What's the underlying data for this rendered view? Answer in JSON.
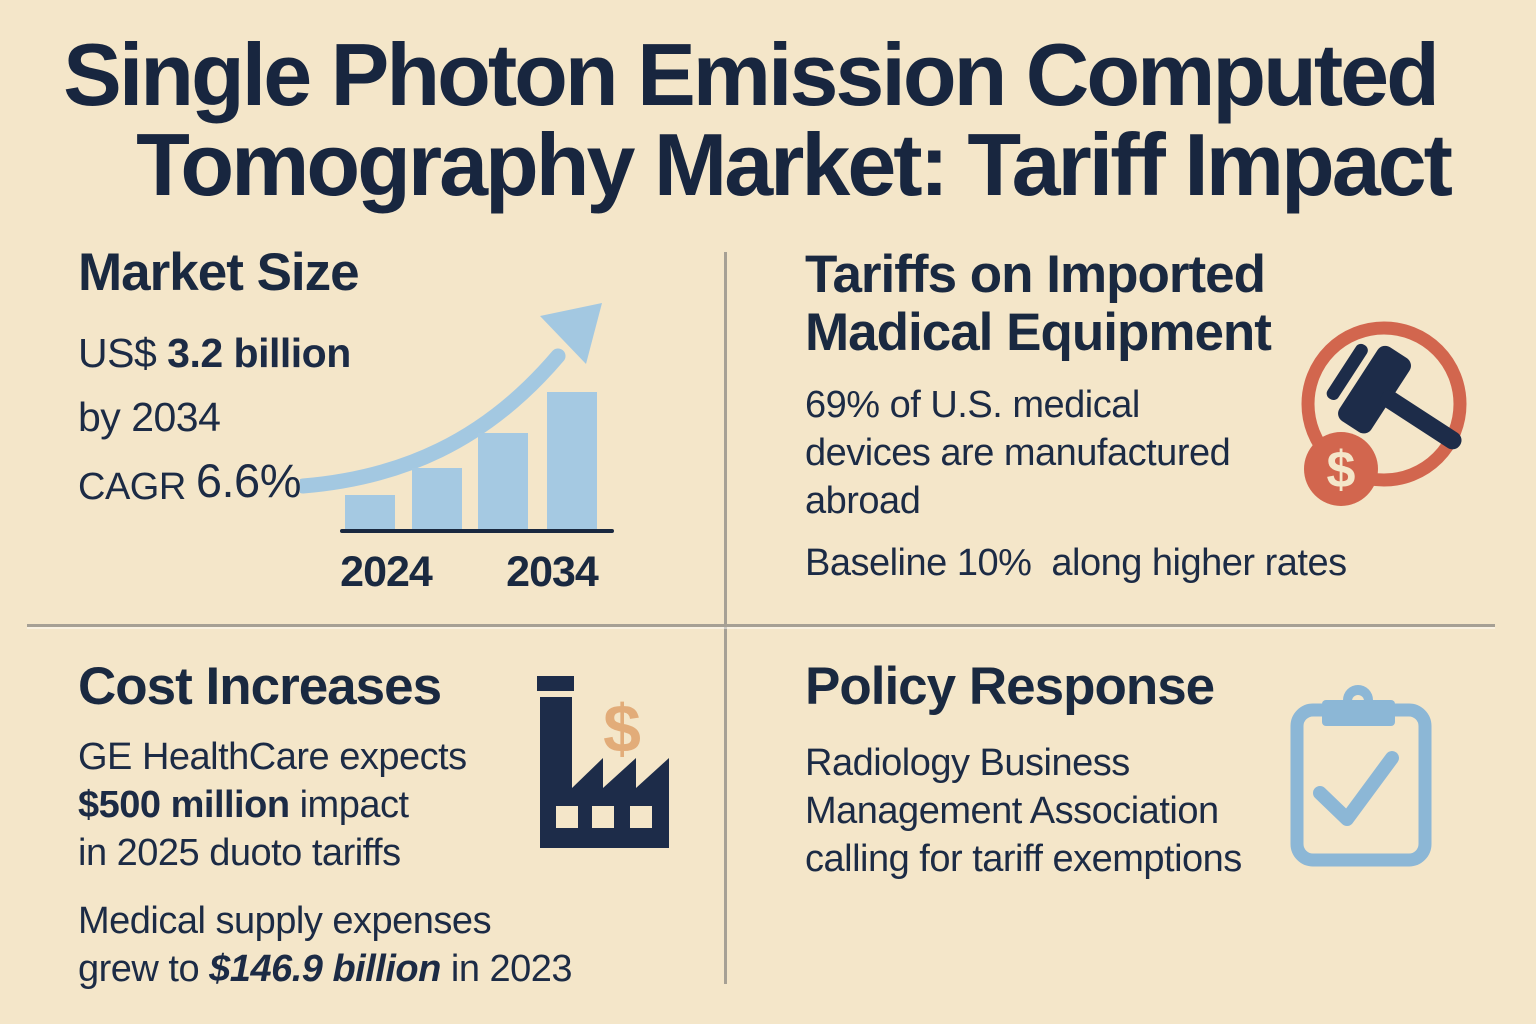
{
  "title": {
    "line1": "Single Photon Emission Computed",
    "line2": "Tomography Market: Tariff Impact"
  },
  "market_size": {
    "heading": "Market Size",
    "value_prefix": "US$ ",
    "value_bold": "3.2 billion",
    "value_line2": "by 2034",
    "cagr_label": "CAGR ",
    "cagr_value": "6.6%"
  },
  "chart_data": {
    "type": "bar",
    "title": "",
    "xlabel": "",
    "ylabel": "",
    "categories": [
      "2024",
      "",
      "",
      "2034"
    ],
    "x_tick_labels": [
      "2024",
      "2034"
    ],
    "values": [
      35,
      62,
      97,
      138
    ],
    "values_note": "decorative growth bars, relative heights in px; no numeric y-axis shown",
    "bar_color": "#a5c9e2",
    "annotation": "curved upward trend arrow",
    "grid": "off",
    "legend": "none"
  },
  "tariffs": {
    "heading_line1": "Tariffs on Imported",
    "heading_line2": "Madical Equipment",
    "body_line1": "69% of U.S. medical",
    "body_line2": "devices are manufactured",
    "body_line3": "abroad",
    "baseline_left": "Baseline 10%",
    "baseline_right": "along higher rates"
  },
  "cost_increases": {
    "heading": "Cost Increases",
    "p1_line1": "GE HealthCare expects",
    "p1_bold": "$500 million",
    "p1_after_bold": " impact",
    "p1_line3": "in 2025 duoto tariffs",
    "p2_line1": "Medical supply expenses",
    "p2_prefix": "grew to ",
    "p2_bold_italic": "$146.9 billion",
    "p2_suffix": " in 2023"
  },
  "policy_response": {
    "heading": "Policy Response",
    "body_line1": "Radiology Business",
    "body_line2": "Management Association",
    "body_line3": "calling for tariff exemptions"
  },
  "icons": {
    "gavel": "gavel-dollar-icon",
    "factory": "factory-icon",
    "clipboard": "clipboard-check-icon",
    "arrow": "growth-arrow-icon",
    "dollar_sign": "$"
  },
  "colors": {
    "background": "#f4e6c9",
    "navy_text": "#1c2b45",
    "title_navy": "#18263f",
    "bar_blue": "#a5c9e2",
    "icon_blue": "#8cb7d6",
    "salmon": "#d2664e",
    "tan": "#e2ac79",
    "divider_gray": "#a6a094"
  }
}
